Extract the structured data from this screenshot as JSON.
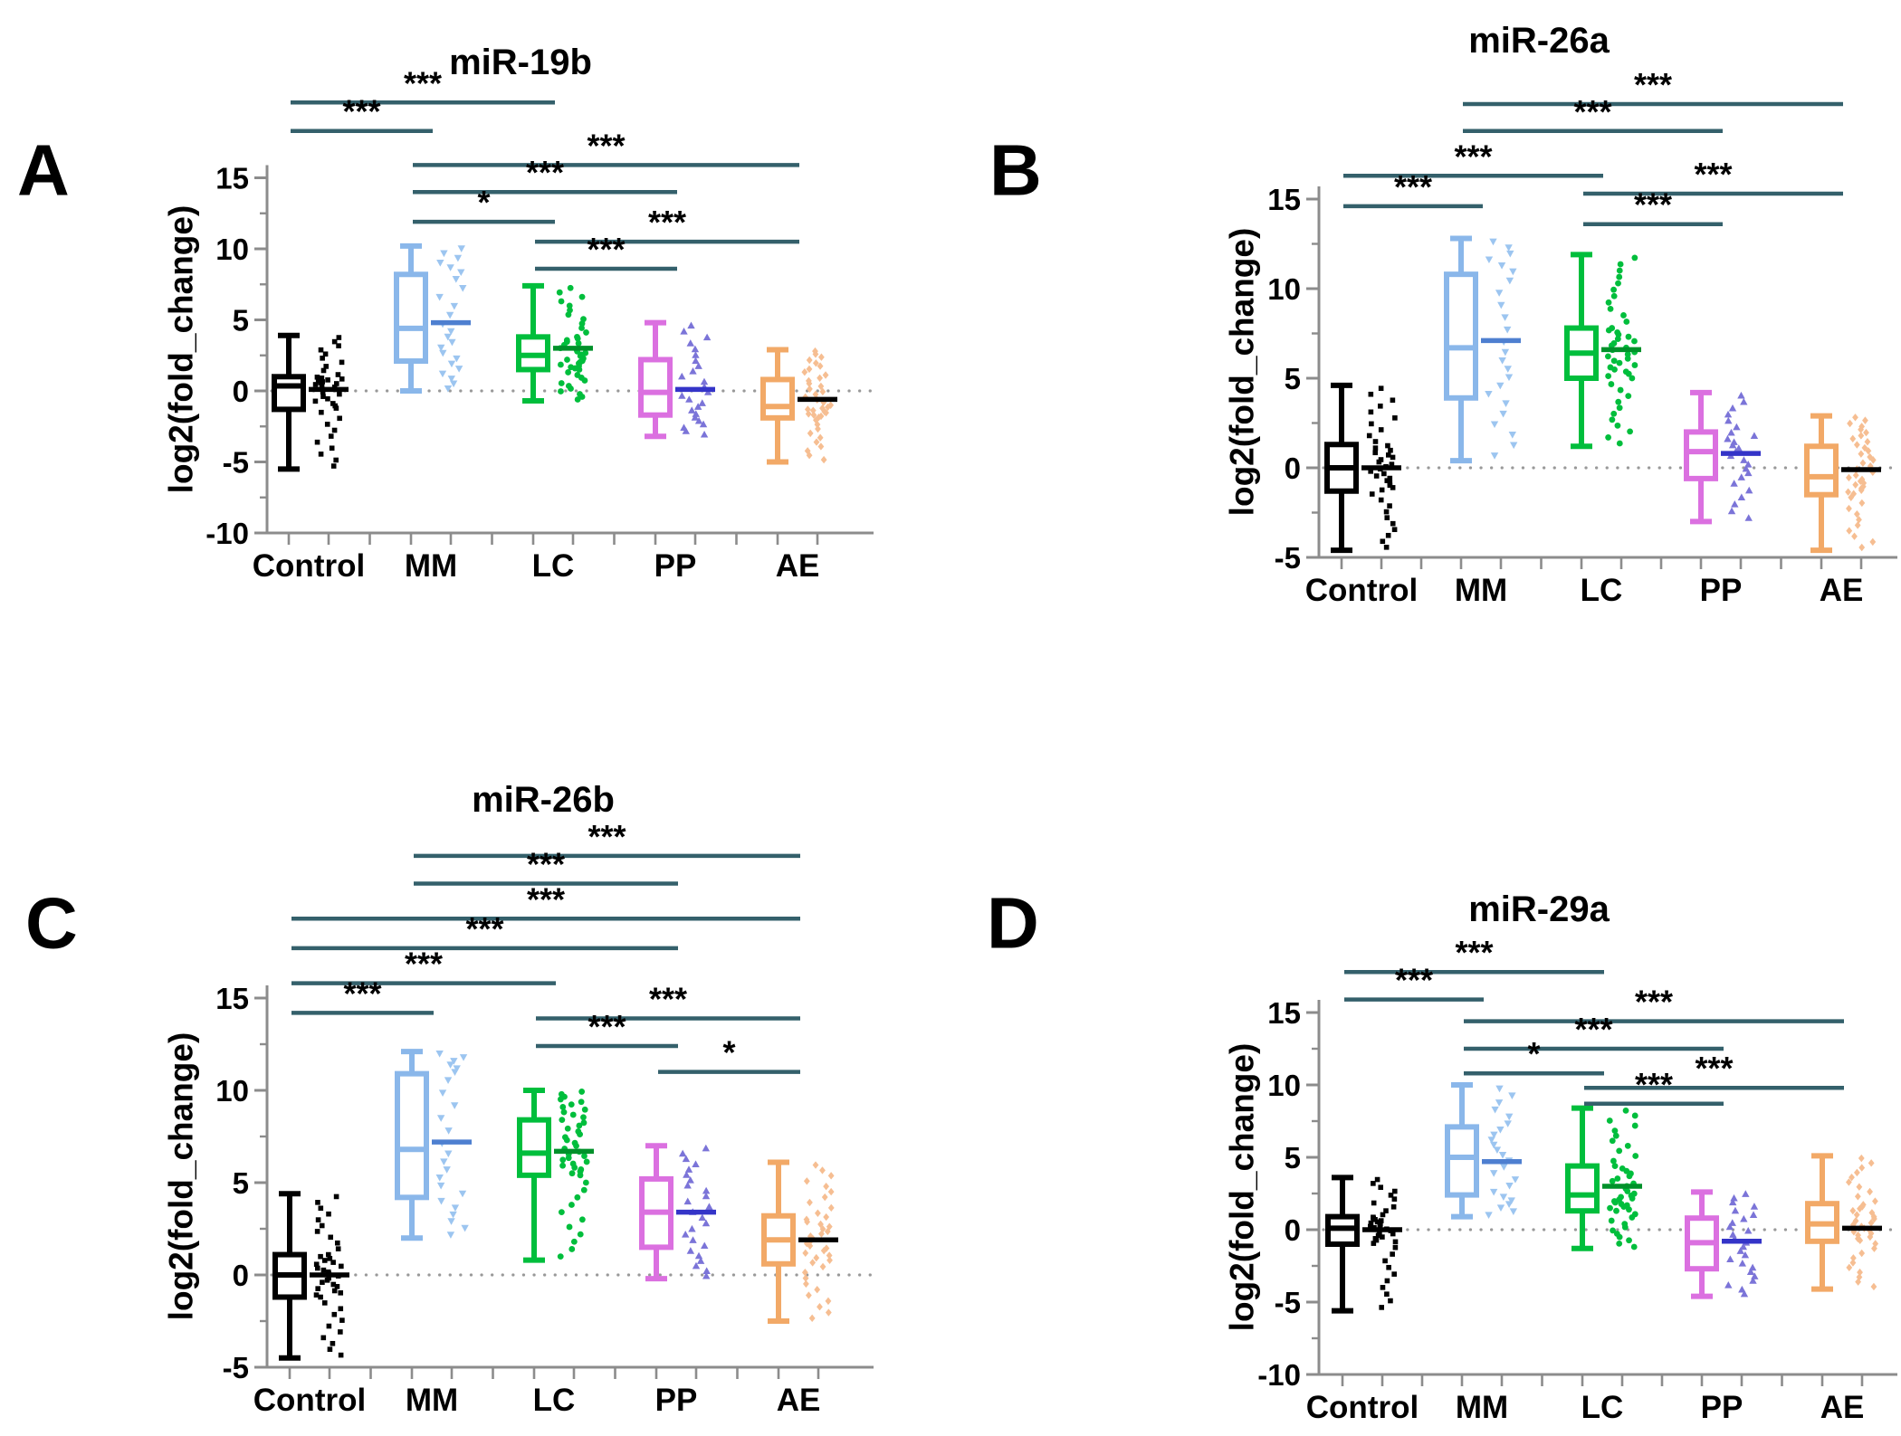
{
  "styles": {
    "background": "#ffffff",
    "axis_color": "#8c8c8c",
    "zero_line_color": "#999999",
    "significance_color": "#34606b",
    "text_color": "#000000",
    "group_styles": {
      "Control": {
        "box": "#000000",
        "marker": "#000000",
        "scatter_median": "#000000",
        "marker_shape": "square"
      },
      "MM": {
        "box": "#8ab7ea",
        "marker": "#9cc5f0",
        "scatter_median": "#4e7fd0",
        "marker_shape": "triangle-down"
      },
      "LC": {
        "box": "#00be3c",
        "marker": "#00be3c",
        "scatter_median": "#00912a",
        "marker_shape": "circle"
      },
      "PP": {
        "box": "#db70e0",
        "marker": "#7b74d8",
        "scatter_median": "#3434c8",
        "marker_shape": "triangle-up"
      },
      "AE": {
        "box": "#f2a967",
        "marker": "#f6be92",
        "scatter_median": "#000000",
        "marker_shape": "diamond"
      }
    }
  },
  "chart_data": [
    {
      "type": "box",
      "panel": "A",
      "title": "miR-19b",
      "ylabel": "log2(fold_change)",
      "xlabel": "",
      "categories": [
        "Control",
        "MM",
        "LC",
        "PP",
        "AE"
      ],
      "y_ticks": [
        15,
        10,
        5,
        0,
        -5,
        -10
      ],
      "ylim": [
        -10,
        15
      ],
      "grid": false,
      "legend": "none",
      "groups": [
        {
          "name": "Control",
          "whisker_low": -5.5,
          "q1": -1.3,
          "median": 0.35,
          "q3": 1.0,
          "whisker_high": 3.9,
          "scatter_median": 0.1,
          "n_points": 40
        },
        {
          "name": "MM",
          "whisker_low": 0.0,
          "q1": 2.1,
          "median": 4.4,
          "q3": 8.2,
          "whisker_high": 10.2,
          "scatter_median": 4.8,
          "n_points": 24
        },
        {
          "name": "LC",
          "whisker_low": -0.7,
          "q1": 1.5,
          "median": 2.5,
          "q3": 3.8,
          "whisker_high": 7.4,
          "scatter_median": 3.0,
          "n_points": 46
        },
        {
          "name": "PP",
          "whisker_low": -3.2,
          "q1": -1.7,
          "median": -0.1,
          "q3": 2.2,
          "whisker_high": 4.8,
          "scatter_median": 0.1,
          "n_points": 25
        },
        {
          "name": "AE",
          "whisker_low": -5.0,
          "q1": -1.9,
          "median": -1.1,
          "q3": 0.8,
          "whisker_high": 2.9,
          "scatter_median": -0.6,
          "n_points": 40
        }
      ],
      "significance": [
        {
          "group1": "Control",
          "group2": "LC",
          "label": "***",
          "y": 20.3
        },
        {
          "group1": "Control",
          "group2": "MM",
          "label": "***",
          "y": 18.3
        },
        {
          "group1": "MM",
          "group2": "AE",
          "label": "***",
          "y": 15.9
        },
        {
          "group1": "MM",
          "group2": "PP",
          "label": "***",
          "y": 14.0
        },
        {
          "group1": "MM",
          "group2": "LC",
          "label": "*",
          "y": 11.9
        },
        {
          "group1": "LC",
          "group2": "AE",
          "label": "***",
          "y": 10.5
        },
        {
          "group1": "LC",
          "group2": "PP",
          "label": "***",
          "y": 8.6
        }
      ]
    },
    {
      "type": "box",
      "panel": "B",
      "title": "miR-26a",
      "ylabel": "log2(fold_change)",
      "xlabel": "",
      "categories": [
        "Control",
        "MM",
        "LC",
        "PP",
        "AE"
      ],
      "y_ticks": [
        15,
        10,
        5,
        0,
        -5
      ],
      "ylim": [
        -5,
        15
      ],
      "grid": false,
      "legend": "none",
      "groups": [
        {
          "name": "Control",
          "whisker_low": -4.6,
          "q1": -1.3,
          "median": 0.0,
          "q3": 1.3,
          "whisker_high": 4.6,
          "scatter_median": 0.0,
          "n_points": 40
        },
        {
          "name": "MM",
          "whisker_low": 0.4,
          "q1": 3.9,
          "median": 6.7,
          "q3": 10.8,
          "whisker_high": 12.8,
          "scatter_median": 7.1,
          "n_points": 24
        },
        {
          "name": "LC",
          "whisker_low": 1.2,
          "q1": 5.0,
          "median": 6.4,
          "q3": 7.8,
          "whisker_high": 11.9,
          "scatter_median": 6.6,
          "n_points": 46
        },
        {
          "name": "PP",
          "whisker_low": -3.0,
          "q1": -0.6,
          "median": 0.9,
          "q3": 2.0,
          "whisker_high": 4.2,
          "scatter_median": 0.8,
          "n_points": 25
        },
        {
          "name": "AE",
          "whisker_low": -4.6,
          "q1": -1.5,
          "median": -0.5,
          "q3": 1.2,
          "whisker_high": 2.9,
          "scatter_median": -0.1,
          "n_points": 40
        }
      ],
      "significance": [
        {
          "group1": "MM",
          "group2": "AE",
          "label": "***",
          "y": 20.3
        },
        {
          "group1": "MM",
          "group2": "PP",
          "label": "***",
          "y": 18.8
        },
        {
          "group1": "Control",
          "group2": "LC",
          "label": "***",
          "y": 16.3
        },
        {
          "group1": "LC",
          "group2": "AE",
          "label": "***",
          "y": 15.3
        },
        {
          "group1": "Control",
          "group2": "MM",
          "label": "***",
          "y": 14.6
        },
        {
          "group1": "LC",
          "group2": "PP",
          "label": "***",
          "y": 13.6
        }
      ]
    },
    {
      "type": "box",
      "panel": "C",
      "title": "miR-26b",
      "ylabel": "log2(fold_change)",
      "xlabel": "",
      "categories": [
        "Control",
        "MM",
        "LC",
        "PP",
        "AE"
      ],
      "y_ticks": [
        15,
        10,
        5,
        0,
        -5
      ],
      "ylim": [
        -5,
        15
      ],
      "grid": false,
      "legend": "none",
      "groups": [
        {
          "name": "Control",
          "whisker_low": -4.5,
          "q1": -1.2,
          "median": 0.0,
          "q3": 1.1,
          "whisker_high": 4.4,
          "scatter_median": 0.0,
          "n_points": 42
        },
        {
          "name": "MM",
          "whisker_low": 2.0,
          "q1": 4.2,
          "median": 6.8,
          "q3": 10.9,
          "whisker_high": 12.1,
          "scatter_median": 7.2,
          "n_points": 24
        },
        {
          "name": "LC",
          "whisker_low": 0.8,
          "q1": 5.4,
          "median": 6.6,
          "q3": 8.4,
          "whisker_high": 10.0,
          "scatter_median": 6.7,
          "n_points": 46
        },
        {
          "name": "PP",
          "whisker_low": -0.2,
          "q1": 1.5,
          "median": 3.4,
          "q3": 5.2,
          "whisker_high": 7.0,
          "scatter_median": 3.4,
          "n_points": 25
        },
        {
          "name": "AE",
          "whisker_low": -2.5,
          "q1": 0.6,
          "median": 1.9,
          "q3": 3.2,
          "whisker_high": 6.1,
          "scatter_median": 1.9,
          "n_points": 40
        }
      ],
      "significance": [
        {
          "group1": "MM",
          "group2": "AE",
          "label": "***",
          "y": 22.7
        },
        {
          "group1": "MM",
          "group2": "PP",
          "label": "***",
          "y": 21.2
        },
        {
          "group1": "Control",
          "group2": "AE",
          "label": "***",
          "y": 19.3
        },
        {
          "group1": "Control",
          "group2": "PP",
          "label": "***",
          "y": 17.7
        },
        {
          "group1": "Control",
          "group2": "LC",
          "label": "***",
          "y": 15.8
        },
        {
          "group1": "Control",
          "group2": "MM",
          "label": "***",
          "y": 14.2
        },
        {
          "group1": "LC",
          "group2": "AE",
          "label": "***",
          "y": 13.9
        },
        {
          "group1": "LC",
          "group2": "PP",
          "label": "***",
          "y": 12.4
        },
        {
          "group1": "PP",
          "group2": "AE",
          "label": "*",
          "y": 11.0
        }
      ]
    },
    {
      "type": "box",
      "panel": "D",
      "title": "miR-29a",
      "ylabel": "log2(fold_change)",
      "xlabel": "",
      "categories": [
        "Control",
        "MM",
        "LC",
        "PP",
        "AE"
      ],
      "y_ticks": [
        15,
        10,
        5,
        0,
        -5,
        -10
      ],
      "ylim": [
        -10,
        15
      ],
      "grid": false,
      "legend": "none",
      "groups": [
        {
          "name": "Control",
          "whisker_low": -5.6,
          "q1": -1.0,
          "median": 0.1,
          "q3": 0.9,
          "whisker_high": 3.6,
          "scatter_median": 0.0,
          "n_points": 40
        },
        {
          "name": "MM",
          "whisker_low": 0.9,
          "q1": 2.4,
          "median": 5.0,
          "q3": 7.1,
          "whisker_high": 10.0,
          "scatter_median": 4.7,
          "n_points": 24
        },
        {
          "name": "LC",
          "whisker_low": -1.3,
          "q1": 1.3,
          "median": 2.4,
          "q3": 4.4,
          "whisker_high": 8.4,
          "scatter_median": 3.0,
          "n_points": 46
        },
        {
          "name": "PP",
          "whisker_low": -4.6,
          "q1": -2.7,
          "median": -0.9,
          "q3": 0.8,
          "whisker_high": 2.6,
          "scatter_median": -0.8,
          "n_points": 25
        },
        {
          "name": "AE",
          "whisker_low": -4.1,
          "q1": -0.8,
          "median": 0.4,
          "q3": 1.8,
          "whisker_high": 5.1,
          "scatter_median": 0.1,
          "n_points": 40
        }
      ],
      "significance": [
        {
          "group1": "Control",
          "group2": "LC",
          "label": "***",
          "y": 17.8
        },
        {
          "group1": "Control",
          "group2": "MM",
          "label": "***",
          "y": 15.9
        },
        {
          "group1": "MM",
          "group2": "AE",
          "label": "***",
          "y": 14.4
        },
        {
          "group1": "MM",
          "group2": "PP",
          "label": "***",
          "y": 12.5
        },
        {
          "group1": "MM",
          "group2": "LC",
          "label": "*",
          "y": 10.8
        },
        {
          "group1": "LC",
          "group2": "AE",
          "label": "***",
          "y": 9.8
        },
        {
          "group1": "LC",
          "group2": "PP",
          "label": "***",
          "y": 8.7
        }
      ]
    }
  ]
}
